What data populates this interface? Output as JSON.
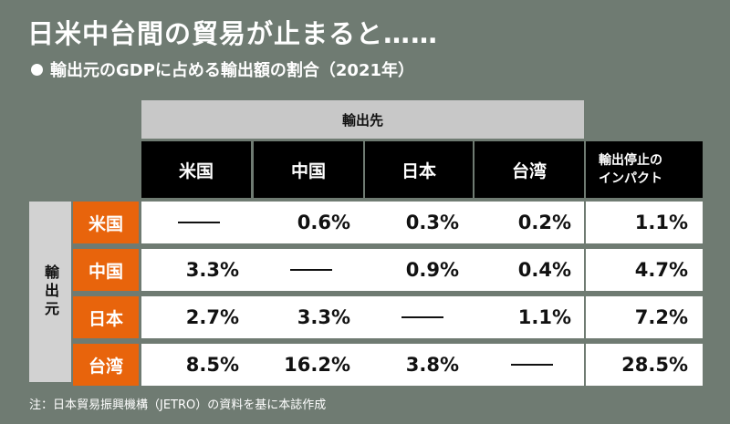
{
  "title": "日米中台間の貿易が止まると……",
  "subtitle": "輸出元のGDPに占める輸出額の割合（2021年）",
  "note": "注：日本貿易振興機構（JETRO）の資料を基に本誌作成",
  "chart_data": {
    "type": "table",
    "header_group_label": "輸出先",
    "row_group_label": "輸出元",
    "columns": [
      "米国",
      "中国",
      "日本",
      "台湾"
    ],
    "impact_label": "輸出停止の\nインパクト",
    "rows": [
      {
        "exporter": "米国",
        "values": [
          null,
          "0.6%",
          "0.3%",
          "0.2%"
        ],
        "impact": "1.1%"
      },
      {
        "exporter": "中国",
        "values": [
          "3.3%",
          null,
          "0.9%",
          "0.4%"
        ],
        "impact": "4.7%"
      },
      {
        "exporter": "日本",
        "values": [
          "2.7%",
          "3.3%",
          null,
          "1.1%"
        ],
        "impact": "7.2%"
      },
      {
        "exporter": "台湾",
        "values": [
          "8.5%",
          "16.2%",
          "3.8%",
          null
        ],
        "impact": "28.5%"
      }
    ]
  }
}
